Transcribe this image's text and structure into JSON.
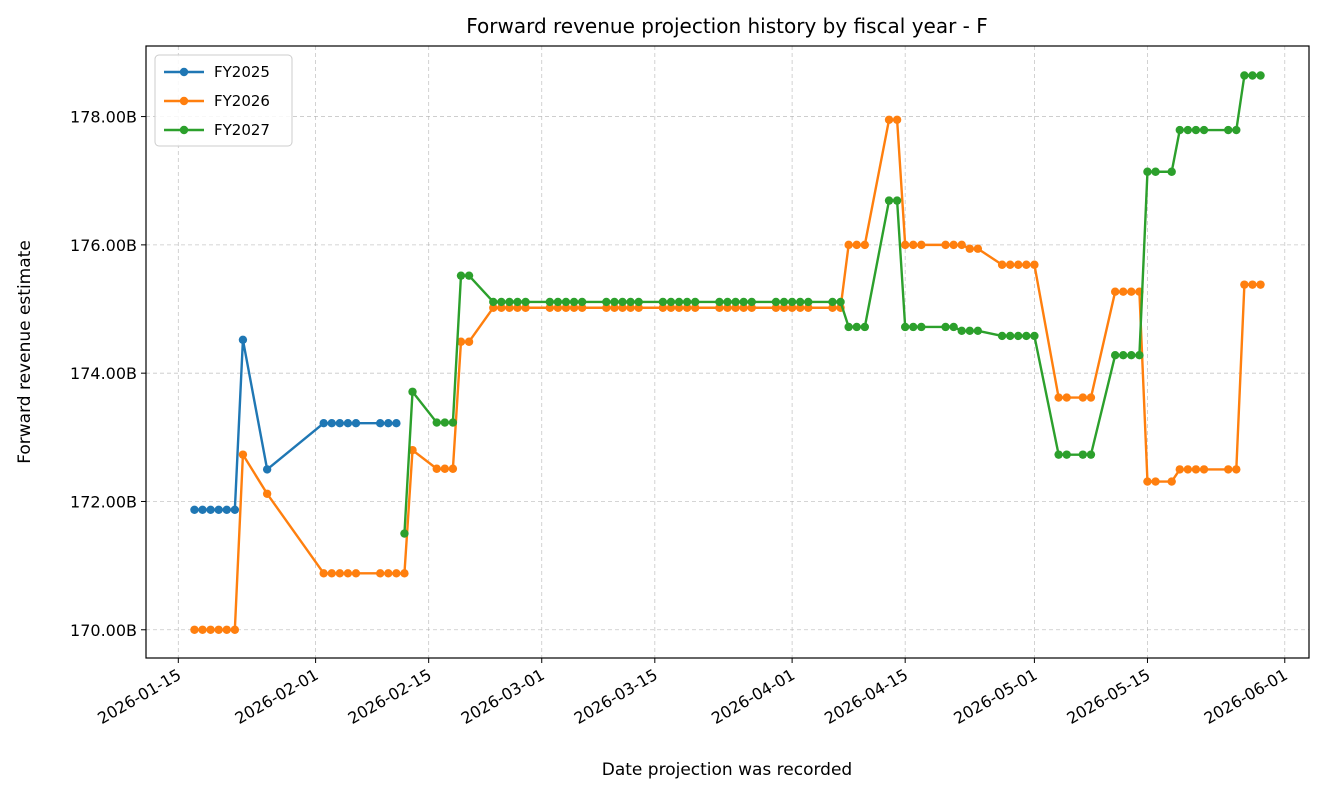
{
  "chart_data": {
    "type": "line",
    "title": "Forward revenue projection history by fiscal year - F",
    "xlabel": "Date projection was recorded",
    "ylabel": "Forward revenue estimate",
    "x_ticks": [
      "2026-01-15",
      "2026-02-01",
      "2026-02-15",
      "2026-03-01",
      "2026-03-15",
      "2026-04-01",
      "2026-04-15",
      "2026-05-01",
      "2026-05-15",
      "2026-06-01"
    ],
    "y_ticks": [
      "170.00B",
      "172.00B",
      "174.00B",
      "176.00B",
      "178.00B"
    ],
    "y_tick_values": [
      170,
      172,
      174,
      176,
      178
    ],
    "xlim": [
      "2026-01-11",
      "2026-06-04"
    ],
    "ylim": [
      169.56,
      179.1
    ],
    "grid": true,
    "legend_position": "top-left",
    "series": [
      {
        "name": "FY2025",
        "color": "#1f77b4",
        "points": [
          [
            "2026-01-17",
            171.87
          ],
          [
            "2026-01-18",
            171.87
          ],
          [
            "2026-01-19",
            171.87
          ],
          [
            "2026-01-20",
            171.87
          ],
          [
            "2026-01-21",
            171.87
          ],
          [
            "2026-01-22",
            171.87
          ],
          [
            "2026-01-23",
            174.52
          ],
          [
            "2026-01-26",
            172.5
          ],
          [
            "2026-02-02",
            173.22
          ],
          [
            "2026-02-03",
            173.22
          ],
          [
            "2026-02-04",
            173.22
          ],
          [
            "2026-02-05",
            173.22
          ],
          [
            "2026-02-06",
            173.22
          ],
          [
            "2026-02-09",
            173.22
          ],
          [
            "2026-02-10",
            173.22
          ],
          [
            "2026-02-11",
            173.22
          ]
        ]
      },
      {
        "name": "FY2026",
        "color": "#ff7f0e",
        "points": [
          [
            "2026-01-17",
            170.0
          ],
          [
            "2026-01-18",
            170.0
          ],
          [
            "2026-01-19",
            170.0
          ],
          [
            "2026-01-20",
            170.0
          ],
          [
            "2026-01-21",
            170.0
          ],
          [
            "2026-01-22",
            170.0
          ],
          [
            "2026-01-23",
            172.73
          ],
          [
            "2026-01-26",
            172.12
          ],
          [
            "2026-02-02",
            170.88
          ],
          [
            "2026-02-03",
            170.88
          ],
          [
            "2026-02-04",
            170.88
          ],
          [
            "2026-02-05",
            170.88
          ],
          [
            "2026-02-06",
            170.88
          ],
          [
            "2026-02-09",
            170.88
          ],
          [
            "2026-02-10",
            170.88
          ],
          [
            "2026-02-11",
            170.88
          ],
          [
            "2026-02-12",
            170.88
          ],
          [
            "2026-02-13",
            172.8
          ],
          [
            "2026-02-16",
            172.51
          ],
          [
            "2026-02-17",
            172.51
          ],
          [
            "2026-02-18",
            172.51
          ],
          [
            "2026-02-19",
            174.49
          ],
          [
            "2026-02-20",
            174.49
          ],
          [
            "2026-02-23",
            175.02
          ],
          [
            "2026-02-24",
            175.02
          ],
          [
            "2026-02-25",
            175.02
          ],
          [
            "2026-02-26",
            175.02
          ],
          [
            "2026-02-27",
            175.02
          ],
          [
            "2026-03-02",
            175.02
          ],
          [
            "2026-03-03",
            175.02
          ],
          [
            "2026-03-04",
            175.02
          ],
          [
            "2026-03-05",
            175.02
          ],
          [
            "2026-03-06",
            175.02
          ],
          [
            "2026-03-09",
            175.02
          ],
          [
            "2026-03-10",
            175.02
          ],
          [
            "2026-03-11",
            175.02
          ],
          [
            "2026-03-12",
            175.02
          ],
          [
            "2026-03-13",
            175.02
          ],
          [
            "2026-03-16",
            175.02
          ],
          [
            "2026-03-17",
            175.02
          ],
          [
            "2026-03-18",
            175.02
          ],
          [
            "2026-03-19",
            175.02
          ],
          [
            "2026-03-20",
            175.02
          ],
          [
            "2026-03-23",
            175.02
          ],
          [
            "2026-03-24",
            175.02
          ],
          [
            "2026-03-25",
            175.02
          ],
          [
            "2026-03-26",
            175.02
          ],
          [
            "2026-03-27",
            175.02
          ],
          [
            "2026-03-30",
            175.02
          ],
          [
            "2026-03-31",
            175.02
          ],
          [
            "2026-04-01",
            175.02
          ],
          [
            "2026-04-02",
            175.02
          ],
          [
            "2026-04-03",
            175.02
          ],
          [
            "2026-04-06",
            175.02
          ],
          [
            "2026-04-07",
            175.02
          ],
          [
            "2026-04-08",
            176.0
          ],
          [
            "2026-04-09",
            176.0
          ],
          [
            "2026-04-10",
            176.0
          ],
          [
            "2026-04-13",
            177.95
          ],
          [
            "2026-04-14",
            177.95
          ],
          [
            "2026-04-15",
            176.0
          ],
          [
            "2026-04-16",
            176.0
          ],
          [
            "2026-04-17",
            176.0
          ],
          [
            "2026-04-20",
            176.0
          ],
          [
            "2026-04-21",
            176.0
          ],
          [
            "2026-04-22",
            176.0
          ],
          [
            "2026-04-23",
            175.94
          ],
          [
            "2026-04-24",
            175.94
          ],
          [
            "2026-04-27",
            175.69
          ],
          [
            "2026-04-28",
            175.69
          ],
          [
            "2026-04-29",
            175.69
          ],
          [
            "2026-04-30",
            175.69
          ],
          [
            "2026-05-01",
            175.69
          ],
          [
            "2026-05-04",
            173.62
          ],
          [
            "2026-05-05",
            173.62
          ],
          [
            "2026-05-07",
            173.62
          ],
          [
            "2026-05-08",
            173.62
          ],
          [
            "2026-05-11",
            175.27
          ],
          [
            "2026-05-12",
            175.27
          ],
          [
            "2026-05-13",
            175.27
          ],
          [
            "2026-05-14",
            175.27
          ],
          [
            "2026-05-15",
            172.31
          ],
          [
            "2026-05-16",
            172.31
          ],
          [
            "2026-05-18",
            172.31
          ],
          [
            "2026-05-19",
            172.5
          ],
          [
            "2026-05-20",
            172.5
          ],
          [
            "2026-05-21",
            172.5
          ],
          [
            "2026-05-22",
            172.5
          ],
          [
            "2026-05-25",
            172.5
          ],
          [
            "2026-05-26",
            172.5
          ],
          [
            "2026-05-27",
            175.38
          ],
          [
            "2026-05-28",
            175.38
          ],
          [
            "2026-05-29",
            175.38
          ]
        ]
      },
      {
        "name": "FY2027",
        "color": "#2ca02c",
        "points": [
          [
            "2026-02-12",
            171.5
          ],
          [
            "2026-02-13",
            173.71
          ],
          [
            "2026-02-16",
            173.23
          ],
          [
            "2026-02-17",
            173.23
          ],
          [
            "2026-02-18",
            173.23
          ],
          [
            "2026-02-19",
            175.52
          ],
          [
            "2026-02-20",
            175.52
          ],
          [
            "2026-02-23",
            175.11
          ],
          [
            "2026-02-24",
            175.11
          ],
          [
            "2026-02-25",
            175.11
          ],
          [
            "2026-02-26",
            175.11
          ],
          [
            "2026-02-27",
            175.11
          ],
          [
            "2026-03-02",
            175.11
          ],
          [
            "2026-03-03",
            175.11
          ],
          [
            "2026-03-04",
            175.11
          ],
          [
            "2026-03-05",
            175.11
          ],
          [
            "2026-03-06",
            175.11
          ],
          [
            "2026-03-09",
            175.11
          ],
          [
            "2026-03-10",
            175.11
          ],
          [
            "2026-03-11",
            175.11
          ],
          [
            "2026-03-12",
            175.11
          ],
          [
            "2026-03-13",
            175.11
          ],
          [
            "2026-03-16",
            175.11
          ],
          [
            "2026-03-17",
            175.11
          ],
          [
            "2026-03-18",
            175.11
          ],
          [
            "2026-03-19",
            175.11
          ],
          [
            "2026-03-20",
            175.11
          ],
          [
            "2026-03-23",
            175.11
          ],
          [
            "2026-03-24",
            175.11
          ],
          [
            "2026-03-25",
            175.11
          ],
          [
            "2026-03-26",
            175.11
          ],
          [
            "2026-03-27",
            175.11
          ],
          [
            "2026-03-30",
            175.11
          ],
          [
            "2026-03-31",
            175.11
          ],
          [
            "2026-04-01",
            175.11
          ],
          [
            "2026-04-02",
            175.11
          ],
          [
            "2026-04-03",
            175.11
          ],
          [
            "2026-04-06",
            175.11
          ],
          [
            "2026-04-07",
            175.11
          ],
          [
            "2026-04-08",
            174.72
          ],
          [
            "2026-04-09",
            174.72
          ],
          [
            "2026-04-10",
            174.72
          ],
          [
            "2026-04-13",
            176.69
          ],
          [
            "2026-04-14",
            176.69
          ],
          [
            "2026-04-15",
            174.72
          ],
          [
            "2026-04-16",
            174.72
          ],
          [
            "2026-04-17",
            174.72
          ],
          [
            "2026-04-20",
            174.72
          ],
          [
            "2026-04-21",
            174.72
          ],
          [
            "2026-04-22",
            174.66
          ],
          [
            "2026-04-23",
            174.66
          ],
          [
            "2026-04-24",
            174.66
          ],
          [
            "2026-04-27",
            174.58
          ],
          [
            "2026-04-28",
            174.58
          ],
          [
            "2026-04-29",
            174.58
          ],
          [
            "2026-04-30",
            174.58
          ],
          [
            "2026-05-01",
            174.58
          ],
          [
            "2026-05-04",
            172.73
          ],
          [
            "2026-05-05",
            172.73
          ],
          [
            "2026-05-07",
            172.73
          ],
          [
            "2026-05-08",
            172.73
          ],
          [
            "2026-05-11",
            174.28
          ],
          [
            "2026-05-12",
            174.28
          ],
          [
            "2026-05-13",
            174.28
          ],
          [
            "2026-05-14",
            174.28
          ],
          [
            "2026-05-15",
            177.14
          ],
          [
            "2026-05-16",
            177.14
          ],
          [
            "2026-05-18",
            177.14
          ],
          [
            "2026-05-19",
            177.79
          ],
          [
            "2026-05-20",
            177.79
          ],
          [
            "2026-05-21",
            177.79
          ],
          [
            "2026-05-22",
            177.79
          ],
          [
            "2026-05-25",
            177.79
          ],
          [
            "2026-05-26",
            177.79
          ],
          [
            "2026-05-27",
            178.64
          ],
          [
            "2026-05-28",
            178.64
          ],
          [
            "2026-05-29",
            178.64
          ]
        ]
      }
    ]
  }
}
